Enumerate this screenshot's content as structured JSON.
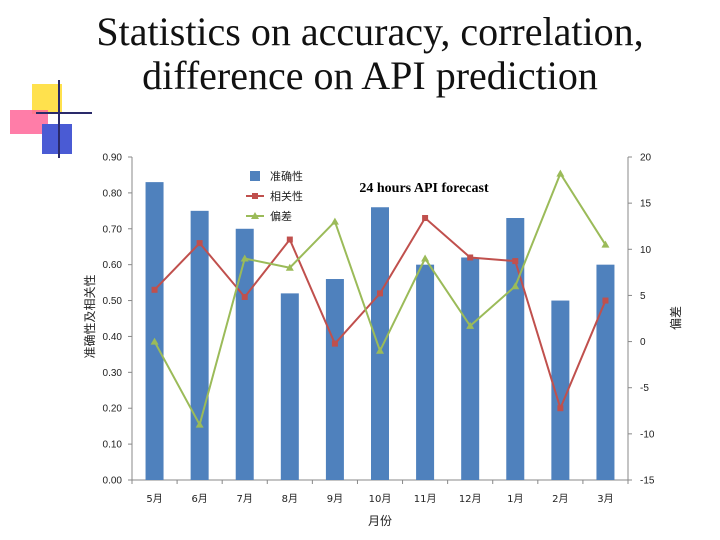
{
  "slide": {
    "title_line1": "Statistics on accuracy, correlation,",
    "title_line2": "difference on API prediction"
  },
  "colors": {
    "bar": "#4f81bd",
    "correlation_line": "#c0504d",
    "difference_line": "#9bbb59",
    "deco_yellow": "#ffe14d",
    "deco_pink": "#ff6699",
    "deco_blue": "#4a5bd4",
    "deco_line": "#2a2a6a"
  },
  "chart_data": {
    "type": "bar",
    "annotation": "24 hours API forecast",
    "categories": [
      "5月",
      "6月",
      "7月",
      "8月",
      "9月",
      "10月",
      "11月",
      "12月",
      "1月",
      "2月",
      "3月"
    ],
    "xlabel": "月份",
    "ylabel": "准确性及相关性",
    "y2label": "偏差",
    "ylim": [
      0,
      0.9
    ],
    "y2lim": [
      -15,
      20
    ],
    "yticks": [
      "0.00",
      "0.10",
      "0.20",
      "0.30",
      "0.40",
      "0.50",
      "0.60",
      "0.70",
      "0.80",
      "0.90"
    ],
    "y2ticks": [
      "-15",
      "-10",
      "-5",
      "0",
      "5",
      "10",
      "15",
      "20"
    ],
    "legend_position": "top-center",
    "grid": false,
    "series": [
      {
        "name": "准确性",
        "type": "bar",
        "axis": "left",
        "values": [
          0.83,
          0.75,
          0.7,
          0.52,
          0.56,
          0.76,
          0.6,
          0.62,
          0.73,
          0.5,
          0.6
        ]
      },
      {
        "name": "相关性",
        "type": "line",
        "axis": "left",
        "values": [
          0.53,
          0.66,
          0.51,
          0.67,
          0.38,
          0.52,
          0.73,
          0.62,
          0.61,
          0.2,
          0.5
        ]
      },
      {
        "name": "偏差",
        "type": "line",
        "axis": "right",
        "values": [
          0,
          -9,
          9,
          8,
          13,
          -1,
          9,
          1.7,
          6,
          18.2,
          10.5
        ]
      }
    ]
  }
}
